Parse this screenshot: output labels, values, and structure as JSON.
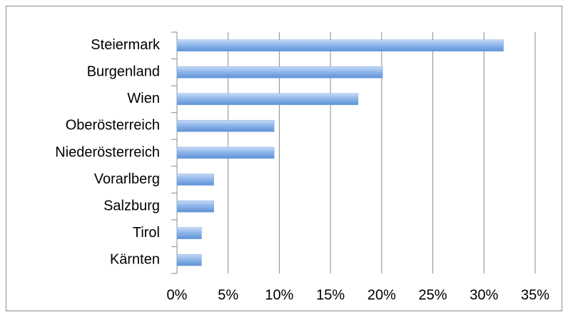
{
  "chart_data": {
    "type": "bar",
    "orientation": "horizontal",
    "categories": [
      "Steiermark",
      "Burgenland",
      "Wien",
      "Oberösterreich",
      "Niederösterreich",
      "Vorarlberg",
      "Salzburg",
      "Tirol",
      "Kärnten"
    ],
    "values": [
      31.9,
      20.1,
      17.7,
      9.5,
      9.5,
      3.6,
      3.6,
      2.4,
      2.4
    ],
    "color": "#7ba7e0",
    "xlim": [
      0,
      35
    ],
    "xticks": [
      {
        "value": 0,
        "label": "0%"
      },
      {
        "value": 5,
        "label": "5%"
      },
      {
        "value": 10,
        "label": "10%"
      },
      {
        "value": 15,
        "label": "15%"
      },
      {
        "value": 20,
        "label": "20%"
      },
      {
        "value": 25,
        "label": "25%"
      },
      {
        "value": 30,
        "label": "30%"
      },
      {
        "value": 35,
        "label": "35%"
      }
    ],
    "grid": true
  }
}
